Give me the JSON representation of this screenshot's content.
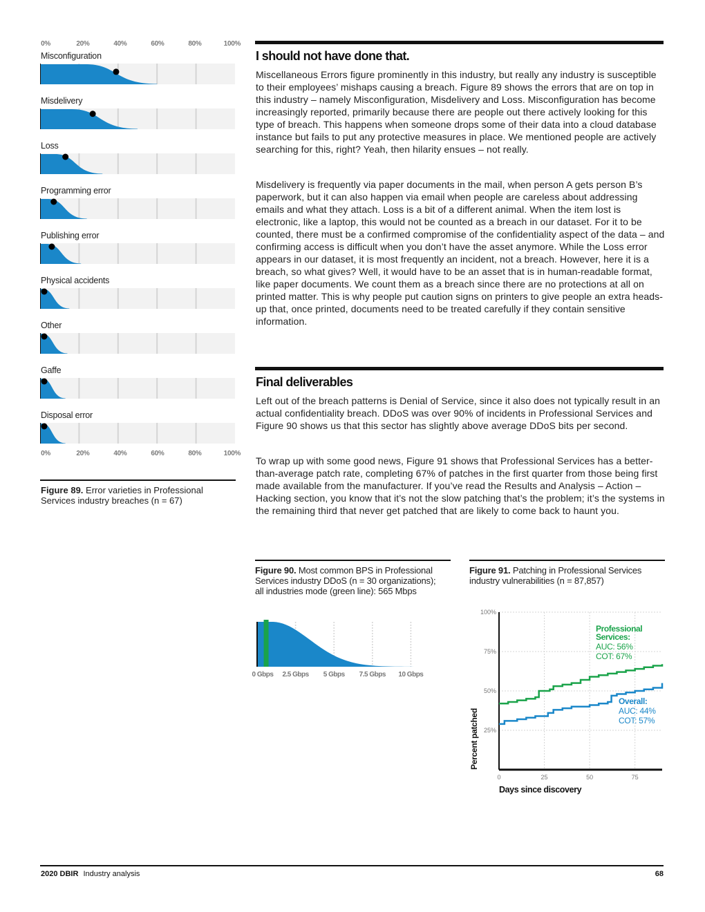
{
  "colors": {
    "blue": "#1a87c9",
    "green": "#1aa34a",
    "dark": "#111111",
    "grid": "#d4d4d4",
    "track": "#f2f2f2"
  },
  "figure89": {
    "axis_ticks": [
      "0%",
      "20%",
      "40%",
      "60%",
      "80%",
      "100%"
    ],
    "caption_label": "Figure 89.",
    "caption_text": "Error varieties in Professional Services industry breaches (n = 67)",
    "chart_data": {
      "type": "area",
      "xlabel": "",
      "ylabel": "",
      "xlim": [
        0,
        100
      ],
      "series": [
        {
          "name": "Misconfiguration",
          "point": 39,
          "extent": 60
        },
        {
          "name": "Misdelivery",
          "point": 27,
          "extent": 50
        },
        {
          "name": "Loss",
          "point": 13,
          "extent": 32
        },
        {
          "name": "Programming error",
          "point": 7,
          "extent": 24
        },
        {
          "name": "Publishing error",
          "point": 6,
          "extent": 21
        },
        {
          "name": "Physical accidents",
          "point": 2,
          "extent": 15
        },
        {
          "name": "Other",
          "point": 2,
          "extent": 14
        },
        {
          "name": "Gaffe",
          "point": 2,
          "extent": 13
        },
        {
          "name": "Disposal error",
          "point": 2,
          "extent": 13
        }
      ]
    }
  },
  "section1": {
    "title": "I should not have done that.",
    "p1": "Miscellaneous Errors figure prominently in this industry, but really any industry is susceptible to their employees’ mishaps causing a breach. Figure 89 shows the errors that are on top in this industry – namely Misconfiguration, Misdelivery and Loss. Misconfiguration has become increasingly reported, primarily because there are people out there actively looking for this type of breach. This happens when someone drops some of their data into a cloud database instance but fails to put any protective measures in place. We mentioned people are actively searching for this, right? Yeah, then hilarity ensues – not really.",
    "p2": "Misdelivery is frequently via paper documents in the mail, when person A gets person B’s paperwork, but it can also happen via email when people are careless about addressing emails and what they attach. Loss is a bit of a different animal. When the item lost is electronic, like a laptop, this would not be counted as a breach in our dataset. For it to be counted, there must be a confirmed compromise of the confidentiality aspect of the data – and confirming access is difficult when you don’t have the asset anymore. While the Loss error appears in our dataset, it is most frequently an incident, not a breach. However, here it is a breach, so what gives? Well, it would have to be an asset that is in human-readable format, like paper documents. We count them as a breach since there are no protections at all on printed matter. This is why people put caution signs on printers to give people an extra heads-up that, once printed, documents need to be treated carefully if they contain sensitive information."
  },
  "section2": {
    "title": "Final deliverables",
    "p1": "Left out of the breach patterns is Denial of Service, since it also does not typically result in an actual confidentiality breach. DDoS was over 90% of incidents in Professional Services and Figure 90 shows us that this sector has slightly above average DDoS bits per second.",
    "p2": "To wrap up with some good news, Figure 91 shows that Professional Services has a better-than-average patch rate, completing 67% of patches in the first quarter from those being first made available from the manufacturer. If you’ve read the Results and Analysis – Action – Hacking section, you know that it’s not the slow patching that’s the problem; it’s the systems in the remaining third that never get patched that are likely to come back to haunt you."
  },
  "figure90": {
    "caption_label": "Figure 90.",
    "caption_text": "Most common BPS in Professional Services industry DDoS (n = 30 organizations); all industries mode (green line): 565 Mbps",
    "chart_data": {
      "type": "area",
      "xlabel": "",
      "ylabel": "",
      "x_ticks": [
        "0 Gbps",
        "2.5 Gbps",
        "5 Gbps",
        "7.5 Gbps",
        "10 Gbps"
      ],
      "tick_values_gbps": [
        0,
        2.5,
        5,
        7.5,
        10
      ],
      "xlim_gbps": [
        0,
        12.5
      ],
      "mode_line_gbps": 0.565,
      "distribution_peak_gbps": 1.0
    }
  },
  "figure91": {
    "caption_label": "Figure 91.",
    "caption_text": "Patching in Professional Services industry vulnerabilities (n = 87,857)",
    "chart_data": {
      "type": "line",
      "xlabel": "Days since discovery",
      "ylabel": "Percent patched",
      "x_ticks": [
        "0",
        "25",
        "50",
        "75"
      ],
      "y_ticks": [
        "25%",
        "50%",
        "75%",
        "100%"
      ],
      "xlim": [
        0,
        90
      ],
      "ylim": [
        0,
        100
      ],
      "series": [
        {
          "name": "Professional Services:",
          "auc": "AUC: 56%",
          "cot": "COT: 67%",
          "points": [
            [
              0,
              42
            ],
            [
              5,
              43
            ],
            [
              10,
              44
            ],
            [
              15,
              45
            ],
            [
              20,
              46
            ],
            [
              22,
              50
            ],
            [
              28,
              51
            ],
            [
              30,
              53
            ],
            [
              35,
              54
            ],
            [
              40,
              55
            ],
            [
              45,
              57
            ],
            [
              50,
              59
            ],
            [
              55,
              60
            ],
            [
              60,
              61
            ],
            [
              65,
              62
            ],
            [
              70,
              63
            ],
            [
              75,
              64
            ],
            [
              80,
              65
            ],
            [
              85,
              66
            ],
            [
              90,
              67
            ]
          ]
        },
        {
          "name": "Overall:",
          "auc": "AUC: 44%",
          "cot": "COT: 57%",
          "points": [
            [
              0,
              29
            ],
            [
              3,
              31
            ],
            [
              10,
              32
            ],
            [
              15,
              33
            ],
            [
              20,
              34
            ],
            [
              27,
              36
            ],
            [
              30,
              38
            ],
            [
              35,
              39
            ],
            [
              40,
              40
            ],
            [
              50,
              41
            ],
            [
              55,
              42
            ],
            [
              60,
              43
            ],
            [
              62,
              47
            ],
            [
              65,
              48
            ],
            [
              70,
              49
            ],
            [
              75,
              50
            ],
            [
              80,
              51
            ],
            [
              85,
              52
            ],
            [
              90,
              55
            ]
          ]
        }
      ]
    }
  },
  "footer": {
    "report": "2020 DBIR",
    "section": "Industry analysis",
    "page": "68"
  }
}
